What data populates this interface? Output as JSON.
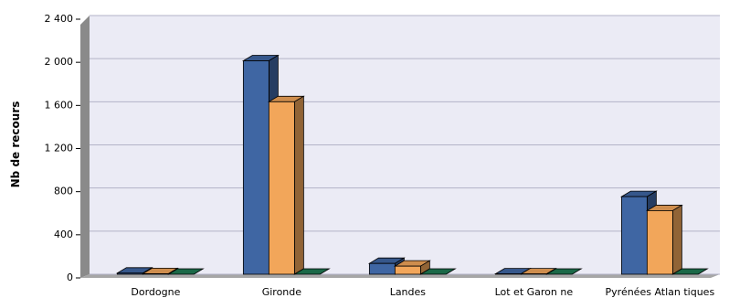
{
  "chart_data": {
    "type": "bar",
    "categories": [
      "Dordogne",
      "Gironde",
      "Landes",
      "Lot et Garon ne",
      "Pyrénées Atlan tiques"
    ],
    "series": [
      {
        "values": [
          10,
          1980,
          100,
          3,
          720
        ]
      },
      {
        "values": [
          5,
          1600,
          75,
          3,
          590
        ]
      },
      {
        "values": [
          0,
          0,
          0,
          0,
          0
        ]
      }
    ],
    "ylabel": "Nb de recours",
    "yticks": [
      "0",
      "400",
      "800",
      "1 200",
      "1 600",
      "2 000",
      "2 400"
    ],
    "ylim": [
      0,
      2400
    ],
    "grid": true,
    "style": "3d",
    "colors": {
      "series": [
        "#3f66a3",
        "#f2a65a",
        "#1f7a54"
      ],
      "plot_background": "#ebebf5",
      "wall_side": "#8a8a8a",
      "floor": "#a6a6a6",
      "grid": "#b3b3c8"
    }
  }
}
